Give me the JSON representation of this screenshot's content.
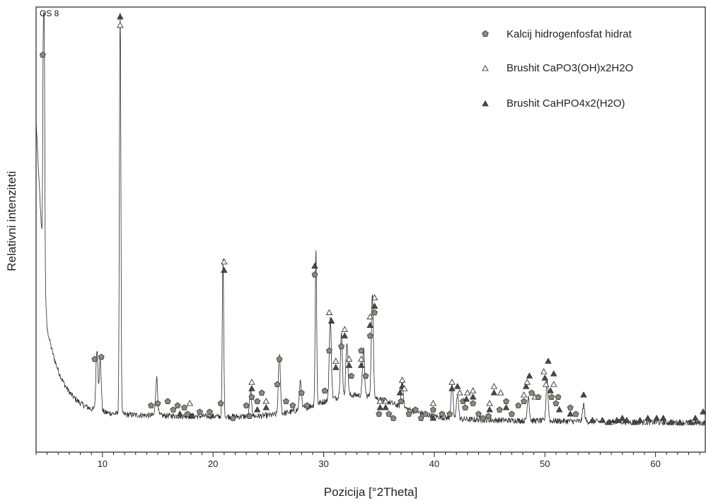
{
  "chart_data": {
    "type": "line",
    "sample_label": "OS 8",
    "xlabel": "Pozicija [°2Theta]",
    "ylabel": "Relativni intenziteti",
    "xlim": [
      4,
      64.5
    ],
    "ylim": [
      0,
      100
    ],
    "x_ticks": [
      10,
      20,
      30,
      40,
      50,
      60
    ],
    "grid": false,
    "legend_position": "top-right",
    "colors": {
      "trace": "#2b2b2b",
      "pentagon_fill": "#8a8a78",
      "triangle_fill": "#4a4a4a",
      "marker_stroke": "#333333"
    },
    "legend": [
      {
        "marker": "pentagon",
        "label": "Kalcij hidrogenfosfat hidrat"
      },
      {
        "marker": "triangle-open",
        "label": "Brushit CaPO3(OH)x2H2O"
      },
      {
        "marker": "triangle-filled",
        "label": "Brushit CaHPO4x2(H2O)"
      }
    ],
    "peaks": [
      {
        "x": 4.7,
        "y": 90
      },
      {
        "x": 9.5,
        "y": 14.5
      },
      {
        "x": 9.8,
        "y": 12
      },
      {
        "x": 11.6,
        "y": 99
      },
      {
        "x": 14.9,
        "y": 9
      },
      {
        "x": 20.9,
        "y": 37
      },
      {
        "x": 23.4,
        "y": 6
      },
      {
        "x": 26.0,
        "y": 14
      },
      {
        "x": 27.9,
        "y": 7
      },
      {
        "x": 29.3,
        "y": 37
      },
      {
        "x": 30.6,
        "y": 19.5
      },
      {
        "x": 31.6,
        "y": 15
      },
      {
        "x": 32.1,
        "y": 13
      },
      {
        "x": 33.6,
        "y": 11
      },
      {
        "x": 34.4,
        "y": 24
      },
      {
        "x": 37.1,
        "y": 7
      },
      {
        "x": 41.6,
        "y": 8
      },
      {
        "x": 42.1,
        "y": 6
      },
      {
        "x": 48.5,
        "y": 6
      },
      {
        "x": 50.2,
        "y": 10
      },
      {
        "x": 53.5,
        "y": 4
      }
    ],
    "markers": [
      {
        "type": "pentagon",
        "x": 4.6,
        "y": 90
      },
      {
        "type": "triangle-filled",
        "x": 11.6,
        "y": 99
      },
      {
        "type": "triangle-open",
        "x": 11.6,
        "y": 97
      },
      {
        "type": "pentagon",
        "x": 9.3,
        "y": 18
      },
      {
        "type": "pentagon",
        "x": 9.9,
        "y": 18.5
      },
      {
        "type": "triangle-open",
        "x": 21.0,
        "y": 41
      },
      {
        "type": "triangle-filled",
        "x": 21.0,
        "y": 39
      },
      {
        "type": "triangle-filled",
        "x": 29.2,
        "y": 40
      },
      {
        "type": "pentagon",
        "x": 29.2,
        "y": 38
      },
      {
        "type": "triangle-open",
        "x": 30.5,
        "y": 29
      },
      {
        "type": "triangle-filled",
        "x": 30.7,
        "y": 27
      },
      {
        "type": "pentagon",
        "x": 30.5,
        "y": 20
      },
      {
        "type": "triangle-open",
        "x": 31.1,
        "y": 17.5
      },
      {
        "type": "triangle-filled",
        "x": 31.1,
        "y": 16
      },
      {
        "type": "triangle-open",
        "x": 31.9,
        "y": 25
      },
      {
        "type": "triangle-filled",
        "x": 31.9,
        "y": 23.5
      },
      {
        "type": "pentagon",
        "x": 31.6,
        "y": 21
      },
      {
        "type": "triangle-open",
        "x": 32.3,
        "y": 18
      },
      {
        "type": "triangle-filled",
        "x": 32.3,
        "y": 16.5
      },
      {
        "type": "pentagon",
        "x": 32.5,
        "y": 14
      },
      {
        "type": "pentagon",
        "x": 33.4,
        "y": 20
      },
      {
        "type": "triangle-open",
        "x": 33.4,
        "y": 18
      },
      {
        "type": "triangle-filled",
        "x": 33.4,
        "y": 16.5
      },
      {
        "type": "pentagon",
        "x": 33.8,
        "y": 14
      },
      {
        "type": "triangle-open",
        "x": 34.2,
        "y": 28
      },
      {
        "type": "triangle-filled",
        "x": 34.2,
        "y": 26
      },
      {
        "type": "pentagon",
        "x": 34.2,
        "y": 23.5
      },
      {
        "type": "triangle-open",
        "x": 34.6,
        "y": 32.5
      },
      {
        "type": "triangle-filled",
        "x": 34.6,
        "y": 30.5
      },
      {
        "type": "pentagon",
        "x": 34.6,
        "y": 29
      },
      {
        "type": "pentagon",
        "x": 26.0,
        "y": 18
      },
      {
        "type": "pentagon",
        "x": 25.8,
        "y": 12
      },
      {
        "type": "triangle-open",
        "x": 23.5,
        "y": 12.5
      },
      {
        "type": "triangle-filled",
        "x": 23.5,
        "y": 11
      },
      {
        "type": "pentagon",
        "x": 23.5,
        "y": 9
      },
      {
        "type": "pentagon",
        "x": 23.0,
        "y": 7
      },
      {
        "type": "pentagon",
        "x": 24.0,
        "y": 8
      },
      {
        "type": "triangle-filled",
        "x": 24.0,
        "y": 6
      },
      {
        "type": "pentagon",
        "x": 24.4,
        "y": 10
      },
      {
        "type": "triangle-open",
        "x": 24.8,
        "y": 8
      },
      {
        "type": "triangle-filled",
        "x": 24.8,
        "y": 6.5
      },
      {
        "type": "pentagon",
        "x": 23.3,
        "y": 4.5
      },
      {
        "type": "pentagon",
        "x": 26.6,
        "y": 8
      },
      {
        "type": "pentagon",
        "x": 27.2,
        "y": 7
      },
      {
        "type": "pentagon",
        "x": 28.0,
        "y": 10
      },
      {
        "type": "pentagon",
        "x": 28.5,
        "y": 7
      },
      {
        "type": "pentagon",
        "x": 30.1,
        "y": 10.5
      },
      {
        "type": "pentagon",
        "x": 20.7,
        "y": 7.5
      },
      {
        "type": "pentagon",
        "x": 21.8,
        "y": 4
      },
      {
        "type": "pentagon",
        "x": 14.4,
        "y": 7
      },
      {
        "type": "pentagon",
        "x": 15.0,
        "y": 7.5
      },
      {
        "type": "pentagon",
        "x": 15.9,
        "y": 8
      },
      {
        "type": "pentagon",
        "x": 16.4,
        "y": 6
      },
      {
        "type": "pentagon",
        "x": 16.8,
        "y": 7
      },
      {
        "type": "triangle-filled",
        "x": 17.0,
        "y": 5
      },
      {
        "type": "pentagon",
        "x": 17.4,
        "y": 6.5
      },
      {
        "type": "triangle-open",
        "x": 17.9,
        "y": 7.5
      },
      {
        "type": "pentagon",
        "x": 17.7,
        "y": 5
      },
      {
        "type": "triangle-filled",
        "x": 18.1,
        "y": 4.5
      },
      {
        "type": "pentagon",
        "x": 18.8,
        "y": 5.5
      },
      {
        "type": "pentagon",
        "x": 19.7,
        "y": 5.5
      },
      {
        "type": "triangle-open",
        "x": 35.1,
        "y": 8
      },
      {
        "type": "triangle-filled",
        "x": 35.1,
        "y": 6.5
      },
      {
        "type": "pentagon",
        "x": 35.0,
        "y": 5
      },
      {
        "type": "triangle-open",
        "x": 35.6,
        "y": 8
      },
      {
        "type": "triangle-filled",
        "x": 35.6,
        "y": 6.5
      },
      {
        "type": "pentagon",
        "x": 35.9,
        "y": 5
      },
      {
        "type": "pentagon",
        "x": 36.3,
        "y": 4
      },
      {
        "type": "triangle-open",
        "x": 37.1,
        "y": 13
      },
      {
        "type": "triangle-filled",
        "x": 37.1,
        "y": 11.5
      },
      {
        "type": "triangle-open",
        "x": 37.3,
        "y": 11
      },
      {
        "type": "triangle-filled",
        "x": 36.9,
        "y": 10
      },
      {
        "type": "pentagon",
        "x": 37.0,
        "y": 8
      },
      {
        "type": "pentagon",
        "x": 37.7,
        "y": 5
      },
      {
        "type": "pentagon",
        "x": 38.3,
        "y": 6
      },
      {
        "type": "pentagon",
        "x": 38.8,
        "y": 4
      },
      {
        "type": "pentagon",
        "x": 39.2,
        "y": 5
      },
      {
        "type": "triangle-open",
        "x": 39.9,
        "y": 7.5
      },
      {
        "type": "pentagon",
        "x": 39.9,
        "y": 6
      },
      {
        "type": "triangle-filled",
        "x": 39.9,
        "y": 4
      },
      {
        "type": "pentagon",
        "x": 40.7,
        "y": 5
      },
      {
        "type": "triangle-open",
        "x": 41.6,
        "y": 12.5
      },
      {
        "type": "triangle-filled",
        "x": 41.6,
        "y": 11
      },
      {
        "type": "pentagon",
        "x": 41.4,
        "y": 5
      },
      {
        "type": "triangle-filled",
        "x": 42.1,
        "y": 11.5
      },
      {
        "type": "triangle-open",
        "x": 42.3,
        "y": 10
      },
      {
        "type": "pentagon",
        "x": 42.6,
        "y": 8
      },
      {
        "type": "triangle-open",
        "x": 43.0,
        "y": 10
      },
      {
        "type": "triangle-filled",
        "x": 42.9,
        "y": 8.5
      },
      {
        "type": "triangle-open",
        "x": 43.5,
        "y": 10.5
      },
      {
        "type": "triangle-filled",
        "x": 43.5,
        "y": 9
      },
      {
        "type": "pentagon",
        "x": 43.5,
        "y": 7.5
      },
      {
        "type": "pentagon",
        "x": 42.8,
        "y": 6.5
      },
      {
        "type": "pentagon",
        "x": 44.0,
        "y": 5
      },
      {
        "type": "pentagon",
        "x": 44.4,
        "y": 4
      },
      {
        "type": "triangle-open",
        "x": 45.0,
        "y": 7.5
      },
      {
        "type": "triangle-filled",
        "x": 45.0,
        "y": 6
      },
      {
        "type": "pentagon",
        "x": 44.9,
        "y": 4.5
      },
      {
        "type": "triangle-open",
        "x": 45.4,
        "y": 11.5
      },
      {
        "type": "triangle-filled",
        "x": 45.4,
        "y": 10
      },
      {
        "type": "triangle-open",
        "x": 46.0,
        "y": 10
      },
      {
        "type": "pentagon",
        "x": 45.9,
        "y": 6
      },
      {
        "type": "pentagon",
        "x": 46.5,
        "y": 8
      },
      {
        "type": "triangle-filled",
        "x": 46.5,
        "y": 6.5
      },
      {
        "type": "pentagon",
        "x": 47.0,
        "y": 5
      },
      {
        "type": "pentagon",
        "x": 47.6,
        "y": 7
      },
      {
        "type": "triangle-open",
        "x": 48.1,
        "y": 9.5
      },
      {
        "type": "pentagon",
        "x": 48.1,
        "y": 8
      },
      {
        "type": "triangle-filled",
        "x": 48.3,
        "y": 11.5
      },
      {
        "type": "triangle-open",
        "x": 48.4,
        "y": 12.5
      },
      {
        "type": "triangle-filled",
        "x": 48.6,
        "y": 14
      },
      {
        "type": "pentagon",
        "x": 48.8,
        "y": 10
      },
      {
        "type": "triangle-open",
        "x": 49.1,
        "y": 9
      },
      {
        "type": "pentagon",
        "x": 49.4,
        "y": 9
      },
      {
        "type": "triangle-open",
        "x": 49.9,
        "y": 15
      },
      {
        "type": "triangle-filled",
        "x": 50.0,
        "y": 13.5
      },
      {
        "type": "triangle-open",
        "x": 50.1,
        "y": 12
      },
      {
        "type": "triangle-filled",
        "x": 50.3,
        "y": 17.5
      },
      {
        "type": "triangle-filled",
        "x": 50.5,
        "y": 10.5
      },
      {
        "type": "pentagon",
        "x": 50.6,
        "y": 9
      },
      {
        "type": "triangle-open",
        "x": 50.8,
        "y": 12
      },
      {
        "type": "triangle-filled",
        "x": 50.8,
        "y": 14.5
      },
      {
        "type": "pentagon",
        "x": 51.0,
        "y": 7.5
      },
      {
        "type": "triangle-filled",
        "x": 51.3,
        "y": 6
      },
      {
        "type": "pentagon",
        "x": 51.2,
        "y": 9
      },
      {
        "type": "pentagon",
        "x": 52.3,
        "y": 6.5
      },
      {
        "type": "triangle-filled",
        "x": 52.3,
        "y": 5
      },
      {
        "type": "pentagon",
        "x": 52.8,
        "y": 5
      },
      {
        "type": "triangle-filled",
        "x": 53.5,
        "y": 9.5
      },
      {
        "type": "triangle-filled",
        "x": 54.3,
        "y": 3.5
      },
      {
        "type": "triangle-filled",
        "x": 55.2,
        "y": 3.5
      },
      {
        "type": "triangle-filled",
        "x": 55.8,
        "y": 3
      },
      {
        "type": "triangle-filled",
        "x": 56.5,
        "y": 3.5
      },
      {
        "type": "triangle-filled",
        "x": 57.0,
        "y": 4
      },
      {
        "type": "triangle-filled",
        "x": 57.4,
        "y": 3.5
      },
      {
        "type": "triangle-filled",
        "x": 58.1,
        "y": 3
      },
      {
        "type": "triangle-filled",
        "x": 58.6,
        "y": 3.5
      },
      {
        "type": "triangle-filled",
        "x": 59.3,
        "y": 4
      },
      {
        "type": "triangle-filled",
        "x": 60.1,
        "y": 4
      },
      {
        "type": "triangle-filled",
        "x": 60.7,
        "y": 4
      },
      {
        "type": "triangle-filled",
        "x": 61.4,
        "y": 3
      },
      {
        "type": "triangle-filled",
        "x": 62.2,
        "y": 3
      },
      {
        "type": "triangle-filled",
        "x": 63.2,
        "y": 3
      },
      {
        "type": "triangle-filled",
        "x": 63.6,
        "y": 4
      },
      {
        "type": "triangle-filled",
        "x": 64.3,
        "y": 5.5
      }
    ]
  }
}
